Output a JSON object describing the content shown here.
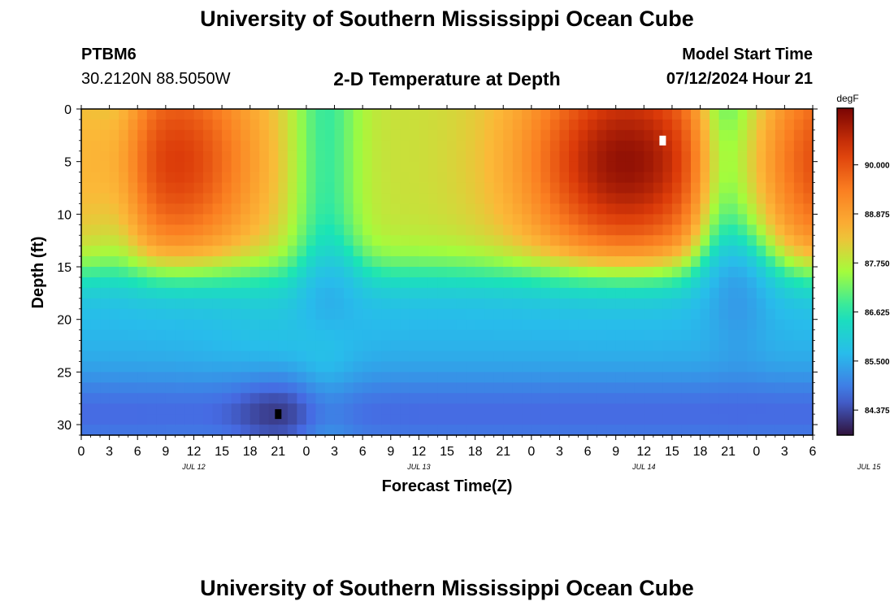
{
  "header": {
    "title": "University of Southern Mississippi Ocean Cube",
    "station_id": "PTBM6",
    "coordinates": "30.2120N  88.5050W",
    "subtitle": "2-D Temperature at Depth",
    "model_start_label": "Model Start Time",
    "model_start_value": "07/12/2024 Hour 21"
  },
  "footer": {
    "title": "University of Southern Mississippi Ocean Cube"
  },
  "chart_data": {
    "type": "heatmap",
    "title": "2-D Temperature at Depth",
    "xlabel": "Forecast Time(Z)",
    "ylabel": "Depth (ft)",
    "x_tick_labels": [
      "0",
      "3",
      "6",
      "9",
      "12",
      "15",
      "18",
      "21",
      "0",
      "3",
      "6",
      "9",
      "12",
      "15",
      "18",
      "21",
      "0",
      "3",
      "6",
      "9",
      "12",
      "15",
      "18",
      "21",
      "0",
      "3",
      "6"
    ],
    "date_labels": [
      "JUL 12",
      "JUL 13",
      "JUL 14",
      "JUL 15"
    ],
    "y_ticks": [
      0,
      5,
      10,
      15,
      20,
      25,
      30
    ],
    "ylim": [
      0,
      31
    ],
    "y_inverted": true,
    "colorbar": {
      "unit": "degF",
      "tick_labels": [
        "90.000",
        "88.875",
        "87.750",
        "86.625",
        "85.500",
        "84.375"
      ],
      "tick_values": [
        90.0,
        88.875,
        87.75,
        86.625,
        85.5,
        84.375
      ],
      "range": [
        83.8,
        91.3
      ]
    },
    "markers": [
      {
        "kind": "max",
        "color": "#ffffff",
        "x_hours": 62,
        "depth_ft": 3
      },
      {
        "kind": "min",
        "color": "#000000",
        "x_hours": 21,
        "depth_ft": 29
      }
    ],
    "grid": false,
    "colors": {
      "cold": "#30123b",
      "cool": "#4686fa",
      "mid": "#1ae4b6",
      "mild": "#a4fc3c",
      "warm": "#fe9b2d",
      "hot": "#7a0403"
    }
  }
}
